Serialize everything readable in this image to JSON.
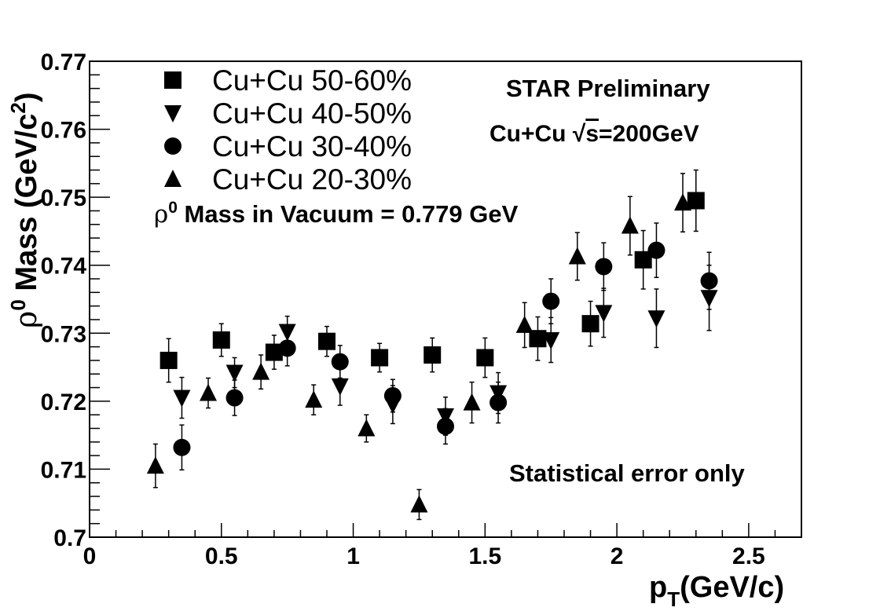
{
  "chart_data": {
    "type": "scatter",
    "xlabel": "p",
    "xlabel_sub": "T",
    "xlabel_unit": "(GeV/c)",
    "ylabel": "ρ",
    "ylabel_sup": "0",
    "ylabel_text": " Mass (GeV/c",
    "ylabel_sup2": "2",
    "ylabel_close": ")",
    "xlim": [
      0,
      2.7
    ],
    "ylim": [
      0.7,
      0.77
    ],
    "x_ticks": [
      0,
      0.5,
      1,
      1.5,
      2,
      2.5
    ],
    "x_tick_labels": [
      "0",
      "0.5",
      "1",
      "1.5",
      "2",
      "2.5"
    ],
    "y_ticks": [
      0.7,
      0.71,
      0.72,
      0.73,
      0.74,
      0.75,
      0.76,
      0.77
    ],
    "y_tick_labels": [
      "0.7",
      "0.71",
      "0.72",
      "0.73",
      "0.74",
      "0.75",
      "0.76",
      "0.77"
    ],
    "grid": false,
    "legend_position": "top-left",
    "series": [
      {
        "name": "Cu+Cu 50-60%",
        "marker": "square",
        "points": [
          {
            "x": 0.3,
            "y": 0.726,
            "err": 0.0032
          },
          {
            "x": 0.5,
            "y": 0.729,
            "err": 0.0024
          },
          {
            "x": 0.7,
            "y": 0.7272,
            "err": 0.0025
          },
          {
            "x": 0.9,
            "y": 0.7288,
            "err": 0.0022
          },
          {
            "x": 1.1,
            "y": 0.7264,
            "err": 0.0021
          },
          {
            "x": 1.3,
            "y": 0.7268,
            "err": 0.0025
          },
          {
            "x": 1.5,
            "y": 0.7264,
            "err": 0.0029
          },
          {
            "x": 1.7,
            "y": 0.7292,
            "err": 0.0032
          },
          {
            "x": 1.9,
            "y": 0.7314,
            "err": 0.0033
          },
          {
            "x": 2.1,
            "y": 0.7408,
            "err": 0.0043
          },
          {
            "x": 2.3,
            "y": 0.7495,
            "err": 0.0045
          }
        ]
      },
      {
        "name": "Cu+Cu 40-50%",
        "marker": "triangle-down",
        "points": [
          {
            "x": 0.35,
            "y": 0.7205,
            "err": 0.003
          },
          {
            "x": 0.55,
            "y": 0.7242,
            "err": 0.0022
          },
          {
            "x": 0.75,
            "y": 0.7302,
            "err": 0.0023
          },
          {
            "x": 0.95,
            "y": 0.7222,
            "err": 0.0028
          },
          {
            "x": 1.15,
            "y": 0.7195,
            "err": 0.0028
          },
          {
            "x": 1.35,
            "y": 0.7178,
            "err": 0.0028
          },
          {
            "x": 1.55,
            "y": 0.7212,
            "err": 0.003
          },
          {
            "x": 1.75,
            "y": 0.729,
            "err": 0.0033
          },
          {
            "x": 1.95,
            "y": 0.733,
            "err": 0.0036
          },
          {
            "x": 2.15,
            "y": 0.7322,
            "err": 0.0043
          },
          {
            "x": 2.35,
            "y": 0.7352,
            "err": 0.0048
          }
        ]
      },
      {
        "name": "Cu+Cu 30-40%",
        "marker": "circle",
        "points": [
          {
            "x": 0.35,
            "y": 0.7132,
            "err": 0.0033
          },
          {
            "x": 0.55,
            "y": 0.7205,
            "err": 0.0026
          },
          {
            "x": 0.75,
            "y": 0.7278,
            "err": 0.0026
          },
          {
            "x": 0.95,
            "y": 0.7258,
            "err": 0.0024
          },
          {
            "x": 1.15,
            "y": 0.7208,
            "err": 0.0024
          },
          {
            "x": 1.35,
            "y": 0.7163,
            "err": 0.0026
          },
          {
            "x": 1.55,
            "y": 0.7198,
            "err": 0.003
          },
          {
            "x": 1.75,
            "y": 0.7347,
            "err": 0.0033
          },
          {
            "x": 1.95,
            "y": 0.7398,
            "err": 0.0035
          },
          {
            "x": 2.15,
            "y": 0.7422,
            "err": 0.004
          },
          {
            "x": 2.35,
            "y": 0.7377,
            "err": 0.0042
          }
        ]
      },
      {
        "name": "Cu+Cu 20-30%",
        "marker": "triangle-up",
        "points": [
          {
            "x": 0.25,
            "y": 0.7105,
            "err": 0.0032
          },
          {
            "x": 0.45,
            "y": 0.7212,
            "err": 0.0022
          },
          {
            "x": 0.65,
            "y": 0.7243,
            "err": 0.0025
          },
          {
            "x": 0.85,
            "y": 0.7202,
            "err": 0.0022
          },
          {
            "x": 1.05,
            "y": 0.716,
            "err": 0.002
          },
          {
            "x": 1.25,
            "y": 0.7048,
            "err": 0.0022
          },
          {
            "x": 1.45,
            "y": 0.7198,
            "err": 0.003
          },
          {
            "x": 1.65,
            "y": 0.7312,
            "err": 0.0033
          },
          {
            "x": 1.85,
            "y": 0.7413,
            "err": 0.0035
          },
          {
            "x": 2.05,
            "y": 0.7458,
            "err": 0.0043
          },
          {
            "x": 2.25,
            "y": 0.7492,
            "err": 0.0043
          }
        ]
      }
    ],
    "annotations": {
      "star": "STAR Preliminary",
      "system_prefix": "Cu+Cu ",
      "sqrt_symbol": "√",
      "system_radicand": "s",
      "system_suffix": "=200GeV",
      "vacuum_rho": "ρ",
      "vacuum_sup": "0",
      "vacuum_text": " Mass in Vacuum = 0.779 GeV",
      "stat_error": "Statistical error only"
    }
  }
}
